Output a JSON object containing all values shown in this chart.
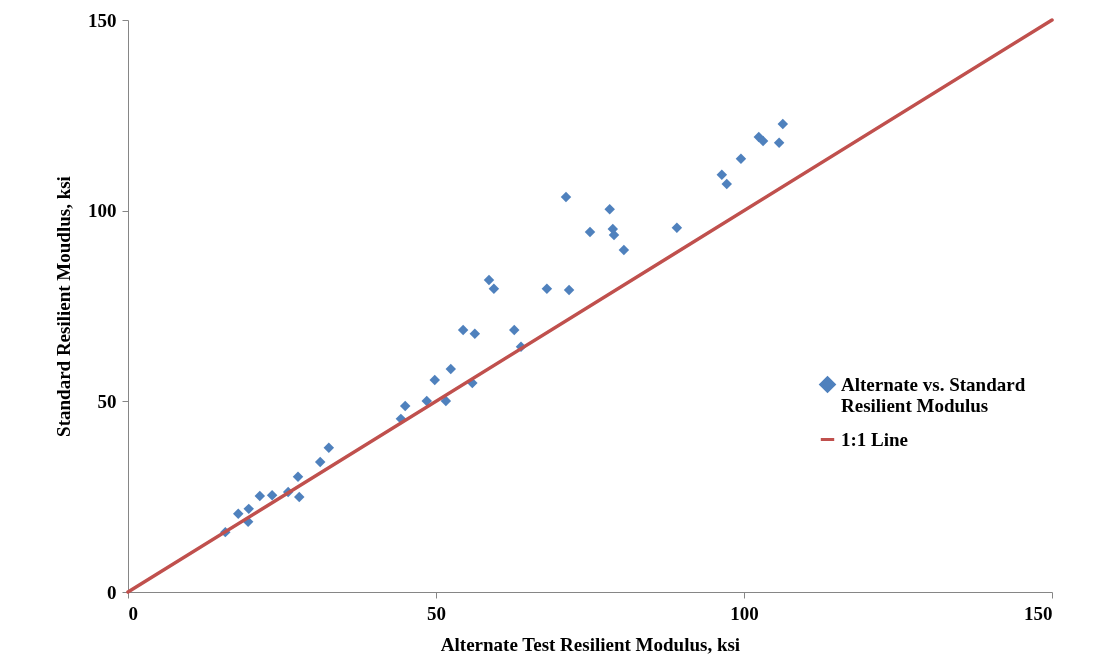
{
  "chart_data": {
    "type": "scatter",
    "xlabel": "Alternate Test Resilient Modulus, ksi",
    "ylabel": "Standard Resilient Moudlus, ksi",
    "xlim": [
      0,
      150
    ],
    "ylim": [
      0,
      150
    ],
    "xticks": [
      0,
      50,
      100,
      150
    ],
    "yticks": [
      0,
      50,
      100,
      150
    ],
    "grid": false,
    "legend": "right",
    "marker": "diamond",
    "series": [
      {
        "name": "Alternate vs. Standard Resilient Modulus",
        "color": "#4f81bd",
        "x": [
          15.8,
          17.9,
          19.6,
          19.5,
          21.4,
          23.4,
          26.0,
          27.6,
          27.8,
          31.2,
          32.6,
          44.3,
          45.0,
          48.5,
          49.8,
          51.6,
          52.4,
          54.4,
          55.9,
          56.3,
          58.6,
          59.4,
          62.7,
          63.8,
          68.0,
          71.1,
          71.6,
          75.0,
          78.2,
          78.7,
          78.9,
          80.5,
          89.1,
          96.4,
          97.2,
          99.5,
          102.4,
          103.1,
          105.7,
          106.3
        ],
        "values": [
          15.7,
          20.5,
          21.8,
          18.4,
          25.2,
          25.4,
          26.2,
          30.2,
          24.9,
          34.1,
          37.8,
          45.4,
          48.8,
          50.1,
          55.6,
          50.1,
          58.5,
          68.7,
          54.8,
          67.7,
          81.8,
          79.5,
          68.7,
          64.3,
          79.5,
          103.6,
          79.2,
          94.4,
          100.4,
          95.2,
          93.6,
          89.7,
          95.5,
          109.4,
          107.0,
          113.6,
          119.3,
          118.3,
          117.8,
          122.7
        ]
      },
      {
        "name": "1:1 Line",
        "type": "line",
        "color": "#c0504d",
        "line_style": "solid",
        "marker": "none",
        "x": [
          0,
          150
        ],
        "values": [
          0,
          150
        ]
      }
    ]
  }
}
